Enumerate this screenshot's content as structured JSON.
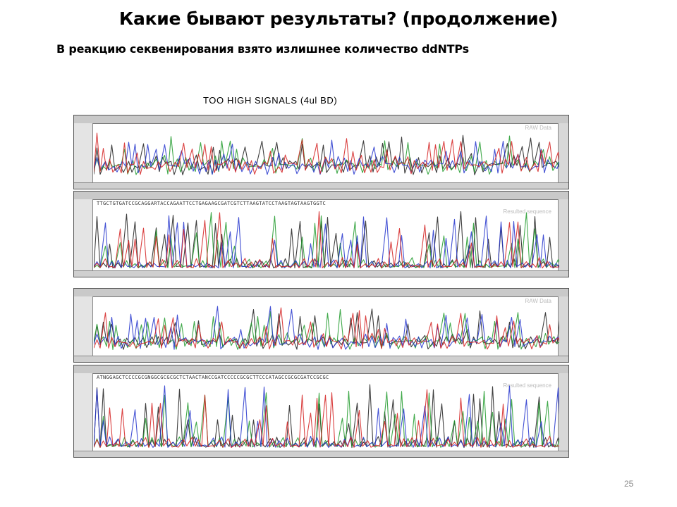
{
  "slide": {
    "title": "Какие бывают результаты? (продолжение)",
    "subtitle": "В реакцию секвенирования взято излишнее количество ddNTPs",
    "page_number": "25"
  },
  "figure": {
    "caption": "TOO HIGH SIGNALS (4ul BD)",
    "panels": [
      {
        "header": "",
        "label": "RAW Data",
        "sequence": "",
        "channel_colors": [
          "#2a2a2a",
          "#1f9a2a",
          "#2233cc",
          "#d42020"
        ]
      },
      {
        "header": "",
        "label": "Resulted sequence",
        "sequence": "TTGCTGTGATCCGCAGGARTACCAGAATTCCTGAGAAGCGATCGTCTTAAGTATCCTAAGTAGTAAGTGGTC",
        "channel_colors": [
          "#2a2a2a",
          "#1f9a2a",
          "#2233cc",
          "#d42020"
        ]
      },
      {
        "header": "",
        "label": "RAW Data",
        "sequence": "",
        "channel_colors": [
          "#2a2a2a",
          "#1f9a2a",
          "#2233cc",
          "#d42020"
        ]
      },
      {
        "header": "",
        "label": "Resulted sequence",
        "sequence": "ATNGGAGCTCCCCGCGNGGCGCGCGCTCTAACTANCCGATCCCCCGCGCTTCCCATAGCCGCGCGATCCGCGC",
        "channel_colors": [
          "#2a2a2a",
          "#1f9a2a",
          "#2233cc",
          "#d42020"
        ]
      }
    ]
  }
}
